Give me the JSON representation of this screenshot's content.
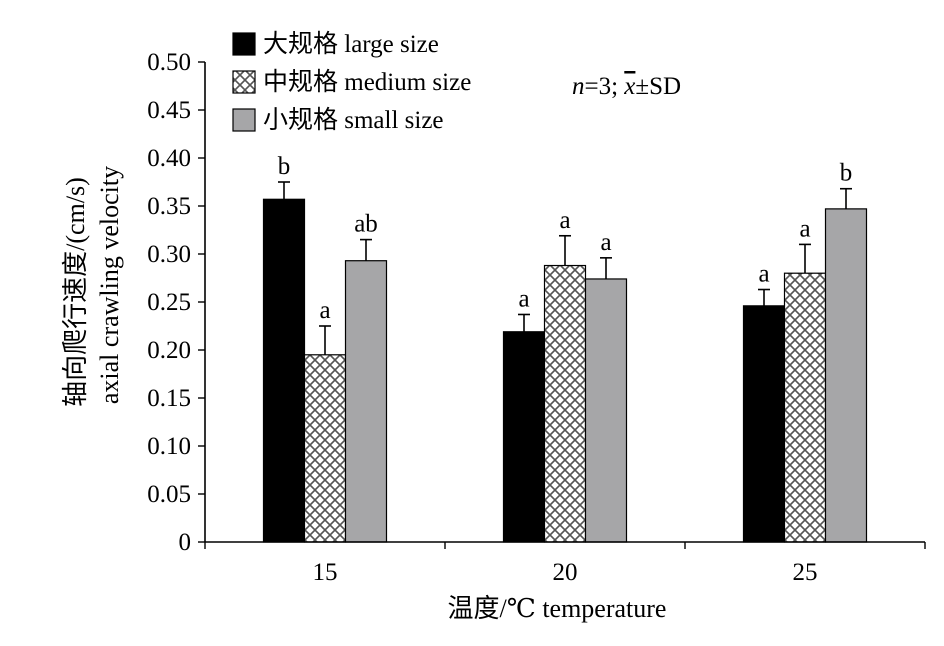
{
  "chart_data": {
    "type": "bar",
    "title": "",
    "xlabel": "温度/℃ temperature",
    "ylabel_cn": "轴向爬行速度/(cm/s)",
    "ylabel_en": "axial crawling velocity",
    "ylim": [
      0,
      0.5
    ],
    "yticks": [
      "0",
      "0.05",
      "0.10",
      "0.15",
      "0.20",
      "0.25",
      "0.30",
      "0.35",
      "0.40",
      "0.45",
      "0.50"
    ],
    "categories": [
      "15",
      "20",
      "25"
    ],
    "legend_position": "top-left",
    "note": {
      "n": "n",
      "rest": "=3; ",
      "xbar": "x",
      "sd": "±SD"
    },
    "series": [
      {
        "name": "大规格 large size",
        "fill": "#000000",
        "pattern": "solid",
        "values": [
          0.357,
          0.219,
          0.246
        ],
        "errors": [
          0.018,
          0.018,
          0.017
        ],
        "letters": [
          "b",
          "a",
          "a"
        ]
      },
      {
        "name": "中规格 medium size",
        "fill": "#ffffff",
        "pattern": "crosshatch",
        "values": [
          0.195,
          0.288,
          0.28
        ],
        "errors": [
          0.03,
          0.031,
          0.03
        ],
        "letters": [
          "a",
          "a",
          "a"
        ]
      },
      {
        "name": "小规格 small size",
        "fill": "#a6a6a8",
        "pattern": "solid",
        "values": [
          0.293,
          0.274,
          0.347
        ],
        "errors": [
          0.022,
          0.022,
          0.021
        ],
        "letters": [
          "ab",
          "a",
          "b"
        ]
      }
    ]
  }
}
